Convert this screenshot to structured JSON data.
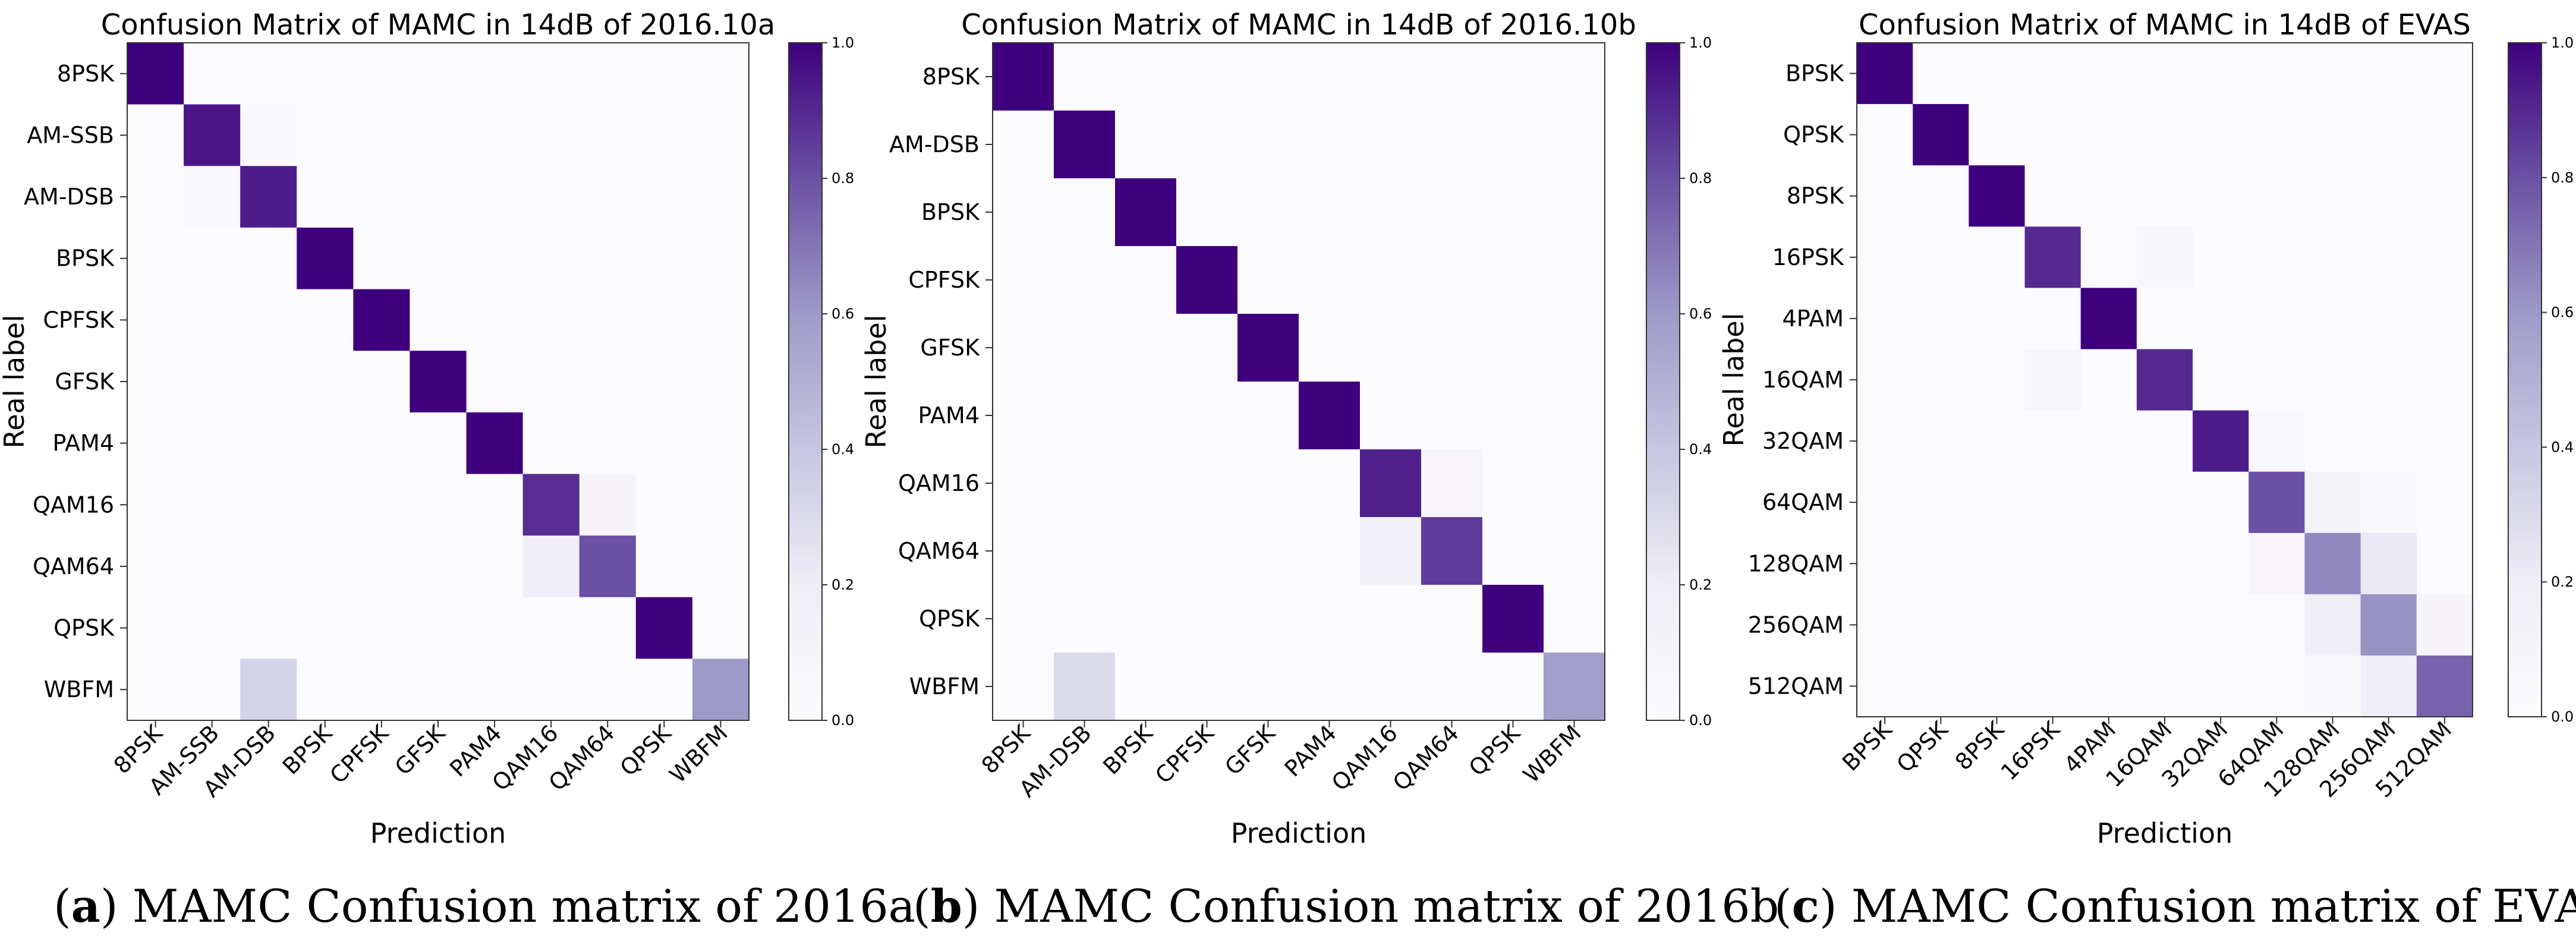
{
  "colors": {
    "colormap_low": "#fcfbfd",
    "colormap_high": "#3f007d",
    "frame": "#333333",
    "text": "#000000"
  },
  "chart_data": [
    {
      "type": "heatmap",
      "title": "Confusion Matrix of MAMC in 14dB of 2016.10a",
      "xlabel": "Prediction",
      "ylabel": "Real label",
      "labels": [
        "8PSK",
        "AM-SSB",
        "AM-DSB",
        "BPSK",
        "CPFSK",
        "GFSK",
        "PAM4",
        "QAM16",
        "QAM64",
        "QPSK",
        "WBFM"
      ],
      "matrix": [
        [
          1.0,
          0,
          0,
          0,
          0,
          0,
          0,
          0,
          0,
          0,
          0
        ],
        [
          0,
          0.95,
          0.03,
          0,
          0,
          0,
          0,
          0,
          0,
          0,
          0
        ],
        [
          0,
          0.03,
          0.93,
          0,
          0,
          0,
          0,
          0,
          0,
          0,
          0
        ],
        [
          0,
          0,
          0,
          1.0,
          0,
          0,
          0,
          0,
          0,
          0,
          0
        ],
        [
          0,
          0,
          0,
          0,
          1.0,
          0,
          0,
          0,
          0,
          0,
          0
        ],
        [
          0,
          0,
          0,
          0,
          0,
          1.0,
          0,
          0,
          0,
          0.01,
          0
        ],
        [
          0,
          0,
          0,
          0,
          0,
          0,
          1.0,
          0,
          0,
          0,
          0
        ],
        [
          0,
          0,
          0,
          0,
          0,
          0,
          0,
          0.89,
          0.1,
          0,
          0
        ],
        [
          0,
          0,
          0,
          0,
          0,
          0,
          0,
          0.2,
          0.8,
          0,
          0
        ],
        [
          0,
          0,
          0,
          0,
          0,
          0,
          0,
          0,
          0,
          1.0,
          0
        ],
        [
          0,
          0,
          0.33,
          0,
          0,
          0,
          0,
          0,
          0,
          0,
          0.6
        ]
      ],
      "colorbar_ticks": [
        "0.0",
        "0.2",
        "0.4",
        "0.6",
        "0.8",
        "1.0"
      ],
      "colorbar_range": [
        0,
        1
      ]
    },
    {
      "type": "heatmap",
      "title": "Confusion Matrix of MAMC in 14dB of 2016.10b",
      "xlabel": "Prediction",
      "ylabel": "Real label",
      "labels": [
        "8PSK",
        "AM-DSB",
        "BPSK",
        "CPFSK",
        "GFSK",
        "PAM4",
        "QAM16",
        "QAM64",
        "QPSK",
        "WBFM"
      ],
      "matrix": [
        [
          1.0,
          0,
          0,
          0,
          0,
          0,
          0,
          0,
          0,
          0
        ],
        [
          0,
          1.0,
          0,
          0,
          0,
          0,
          0,
          0,
          0,
          0
        ],
        [
          0,
          0,
          1.0,
          0,
          0,
          0,
          0,
          0,
          0,
          0
        ],
        [
          0,
          0,
          0,
          1.0,
          0,
          0,
          0,
          0,
          0,
          0
        ],
        [
          0,
          0,
          0,
          0,
          1.0,
          0,
          0,
          0,
          0,
          0
        ],
        [
          0,
          0,
          0,
          0,
          0,
          1.0,
          0,
          0,
          0,
          0
        ],
        [
          0,
          0,
          0,
          0,
          0,
          0,
          0.92,
          0.08,
          0,
          0
        ],
        [
          0,
          0,
          0,
          0,
          0,
          0,
          0.15,
          0.85,
          0,
          0
        ],
        [
          0,
          0,
          0,
          0,
          0,
          0,
          0,
          0,
          1.0,
          0
        ],
        [
          0,
          0.3,
          0,
          0,
          0,
          0,
          0,
          0,
          0,
          0.58
        ]
      ],
      "colorbar_ticks": [
        "0.0",
        "0.2",
        "0.4",
        "0.6",
        "0.8",
        "1.0"
      ],
      "colorbar_range": [
        0,
        1
      ]
    },
    {
      "type": "heatmap",
      "title": "Confusion Matrix of MAMC in 14dB of EVAS",
      "xlabel": "Prediction",
      "ylabel": "Real label",
      "labels": [
        "BPSK",
        "QPSK",
        "8PSK",
        "16PSK",
        "4PAM",
        "16QAM",
        "32QAM",
        "64QAM",
        "128QAM",
        "256QAM",
        "512QAM"
      ],
      "matrix": [
        [
          1.0,
          0,
          0,
          0,
          0,
          0,
          0,
          0,
          0,
          0,
          0
        ],
        [
          0,
          1.0,
          0,
          0,
          0,
          0,
          0,
          0,
          0,
          0,
          0
        ],
        [
          0,
          0,
          1.0,
          0,
          0,
          0,
          0,
          0,
          0,
          0,
          0
        ],
        [
          0,
          0,
          0,
          0.9,
          0,
          0.07,
          0,
          0,
          0,
          0,
          0
        ],
        [
          0,
          0,
          0,
          0,
          1.0,
          0,
          0,
          0,
          0,
          0,
          0
        ],
        [
          0,
          0,
          0,
          0.07,
          0,
          0.9,
          0.02,
          0,
          0,
          0.01,
          0
        ],
        [
          0,
          0,
          0,
          0,
          0,
          0.01,
          0.93,
          0.06,
          0,
          0,
          0
        ],
        [
          0,
          0,
          0,
          0,
          0,
          0,
          0.02,
          0.8,
          0.12,
          0.05,
          0
        ],
        [
          0,
          0,
          0,
          0,
          0,
          0,
          0,
          0.08,
          0.65,
          0.22,
          0
        ],
        [
          0,
          0,
          0,
          0,
          0,
          0,
          0,
          0,
          0.2,
          0.62,
          0.1
        ],
        [
          0,
          0,
          0,
          0,
          0,
          0,
          0,
          0,
          0.03,
          0.2,
          0.75
        ]
      ],
      "colorbar_ticks": [
        "0.0",
        "0.2",
        "0.4",
        "0.6",
        "0.8",
        "1.0"
      ],
      "colorbar_range": [
        0,
        1
      ]
    }
  ],
  "captions": [
    {
      "letter": "a",
      "text": "MAMC Confusion matrix of 2016a"
    },
    {
      "letter": "b",
      "text": "MAMC Confusion matrix of 2016b"
    },
    {
      "letter": "c",
      "text": "MAMC Confusion matrix of EVAS"
    }
  ]
}
